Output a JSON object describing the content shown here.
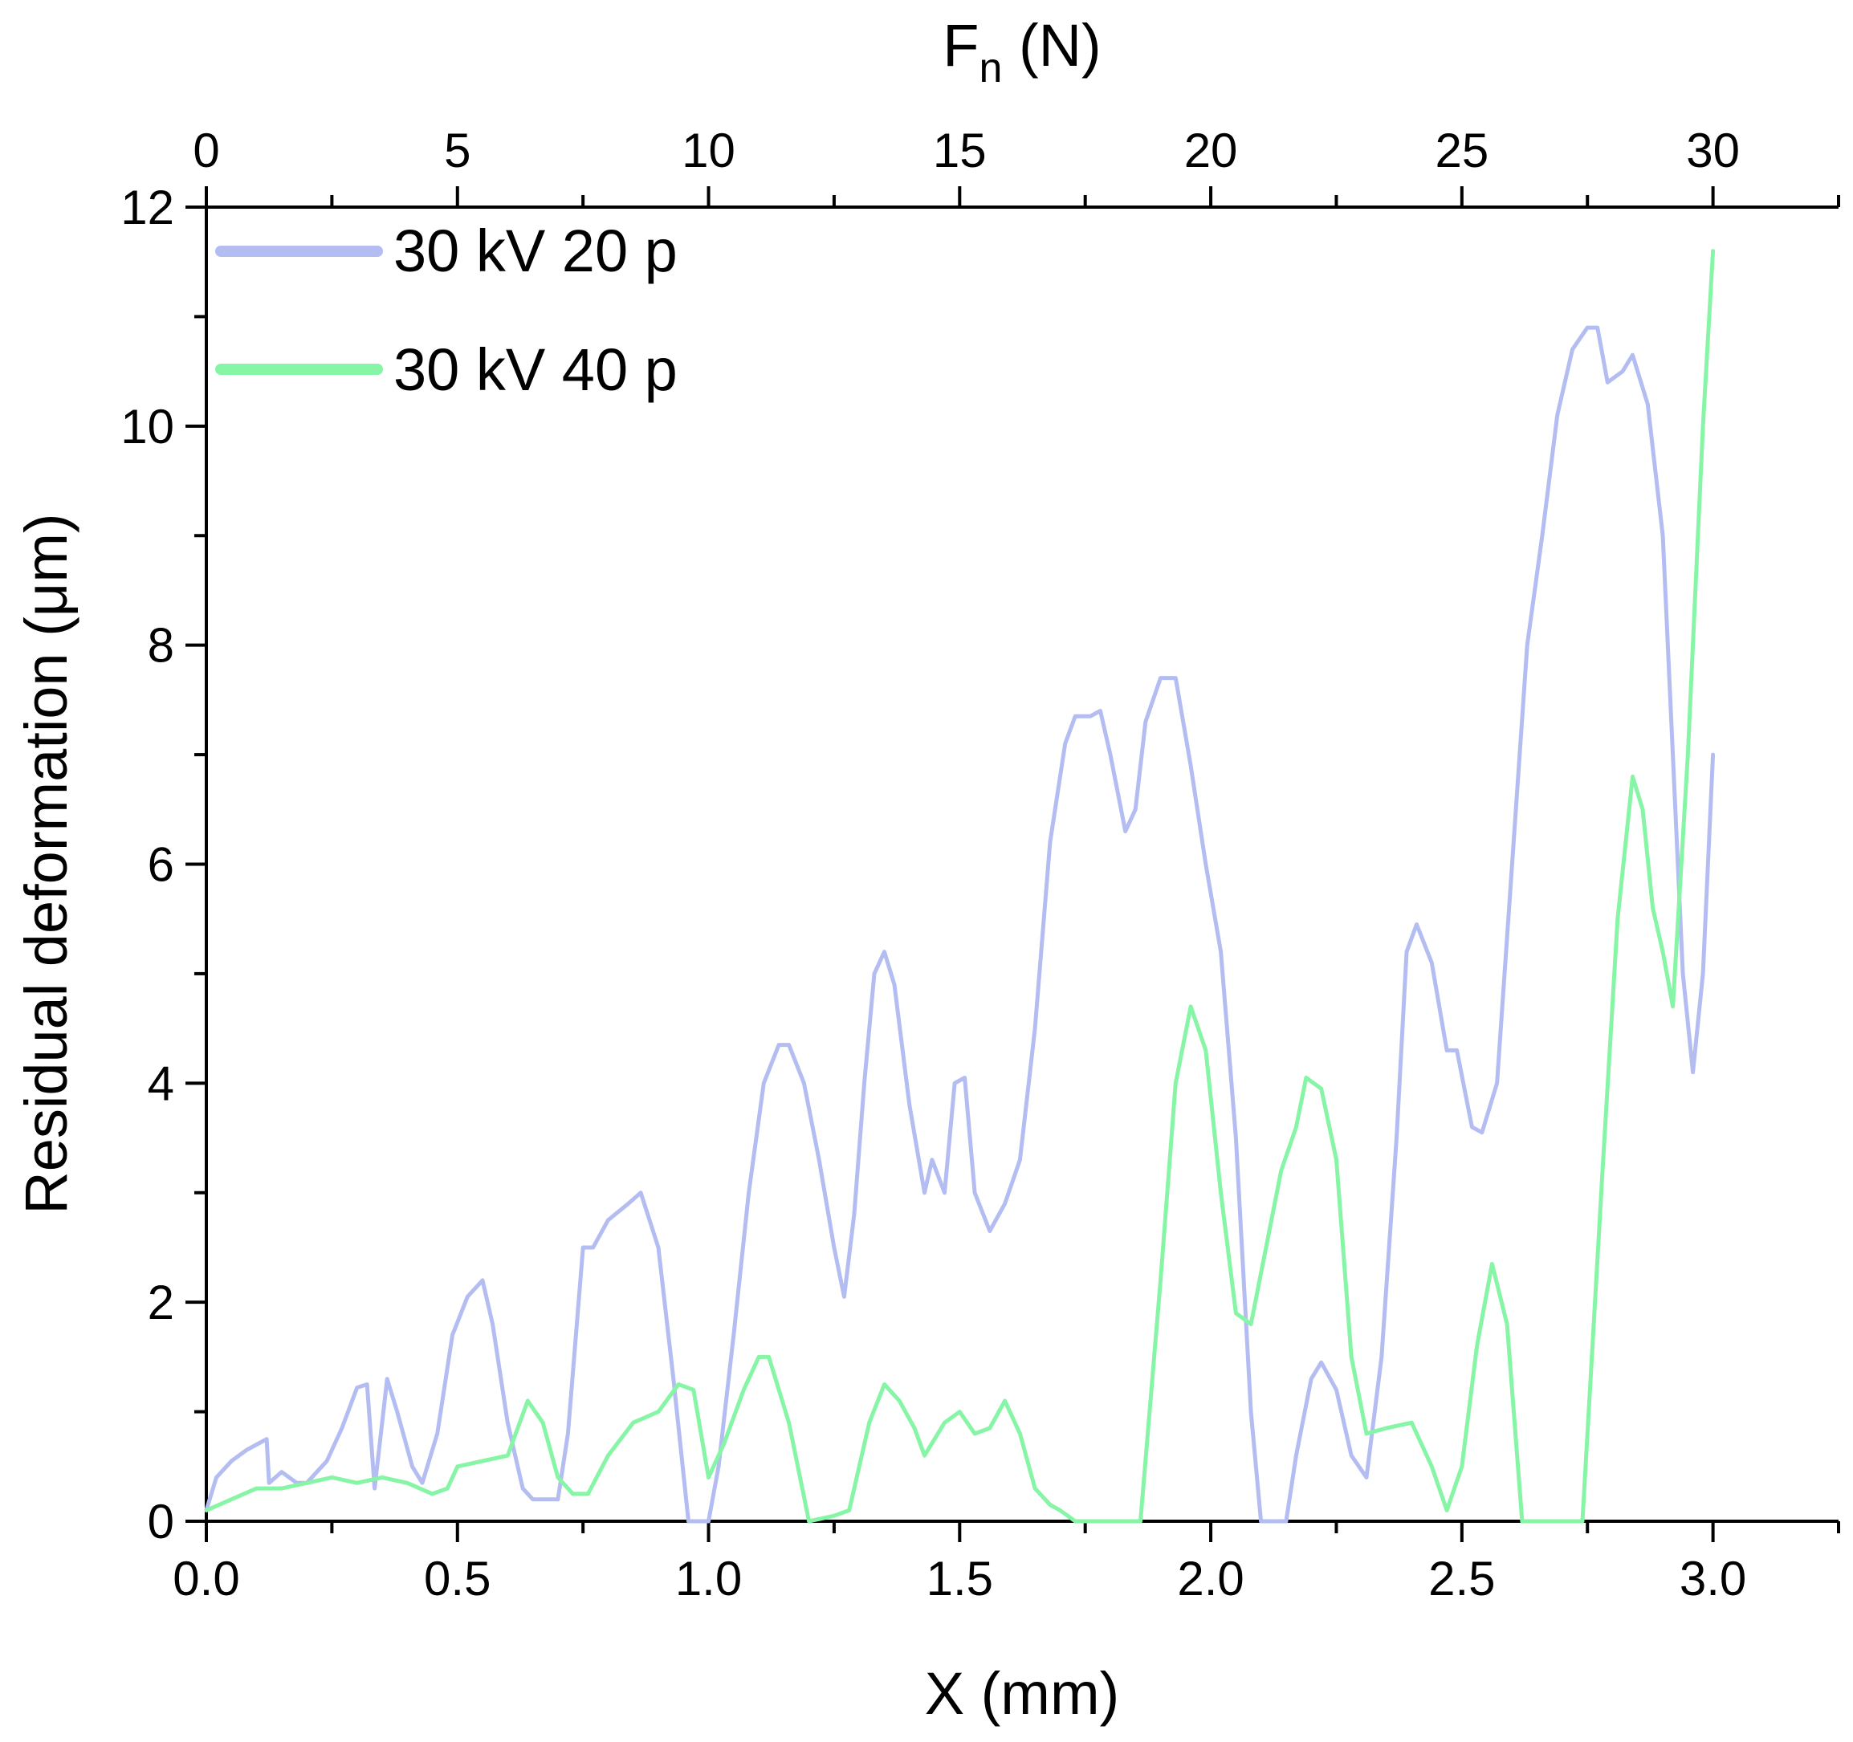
{
  "chart_data": {
    "type": "line",
    "xlabel": "X (mm)",
    "ylabel": "Residual deformation (μm)",
    "top_xlabel_main": "F",
    "top_xlabel_sub": "n",
    "top_xlabel_unit": " (N)",
    "xlim": [
      0,
      3.25
    ],
    "ylim": [
      0,
      12
    ],
    "top_xlim": [
      0,
      32.5
    ],
    "x_ticks": [
      "0.0",
      "0.5",
      "1.0",
      "1.5",
      "2.0",
      "2.5",
      "3.0"
    ],
    "y_ticks": [
      "0",
      "2",
      "4",
      "6",
      "8",
      "10",
      "12"
    ],
    "top_ticks": [
      "0",
      "5",
      "10",
      "15",
      "20",
      "25",
      "30"
    ],
    "grid": false,
    "legend_position": "top-left",
    "series": [
      {
        "name": "30 kV 20 p",
        "color": "#b3bdf2",
        "points": [
          [
            0,
            0.1
          ],
          [
            0.02,
            0.4
          ],
          [
            0.05,
            0.55
          ],
          [
            0.08,
            0.65
          ],
          [
            0.1,
            0.7
          ],
          [
            0.12,
            0.75
          ],
          [
            0.125,
            0.35
          ],
          [
            0.15,
            0.45
          ],
          [
            0.18,
            0.35
          ],
          [
            0.2,
            0.35
          ],
          [
            0.24,
            0.55
          ],
          [
            0.27,
            0.85
          ],
          [
            0.3,
            1.22
          ],
          [
            0.32,
            1.25
          ],
          [
            0.335,
            0.3
          ],
          [
            0.36,
            1.3
          ],
          [
            0.38,
            1.0
          ],
          [
            0.41,
            0.5
          ],
          [
            0.43,
            0.35
          ],
          [
            0.46,
            0.8
          ],
          [
            0.49,
            1.7
          ],
          [
            0.52,
            2.05
          ],
          [
            0.55,
            2.2
          ],
          [
            0.57,
            1.8
          ],
          [
            0.6,
            0.9
          ],
          [
            0.63,
            0.3
          ],
          [
            0.65,
            0.2
          ],
          [
            0.7,
            0.2
          ],
          [
            0.72,
            0.8
          ],
          [
            0.75,
            2.5
          ],
          [
            0.77,
            2.5
          ],
          [
            0.8,
            2.75
          ],
          [
            0.84,
            2.9
          ],
          [
            0.865,
            3.0
          ],
          [
            0.9,
            2.5
          ],
          [
            0.93,
            1.3
          ],
          [
            0.96,
            0.0
          ],
          [
            1.0,
            0.0
          ],
          [
            1.02,
            0.5
          ],
          [
            1.05,
            1.7
          ],
          [
            1.08,
            3.0
          ],
          [
            1.11,
            4.0
          ],
          [
            1.14,
            4.35
          ],
          [
            1.16,
            4.35
          ],
          [
            1.19,
            4.0
          ],
          [
            1.22,
            3.3
          ],
          [
            1.25,
            2.5
          ],
          [
            1.27,
            2.05
          ],
          [
            1.29,
            2.8
          ],
          [
            1.31,
            4.0
          ],
          [
            1.33,
            5.0
          ],
          [
            1.35,
            5.2
          ],
          [
            1.37,
            4.9
          ],
          [
            1.4,
            3.8
          ],
          [
            1.43,
            3.0
          ],
          [
            1.445,
            3.3
          ],
          [
            1.47,
            3.0
          ],
          [
            1.49,
            4.0
          ],
          [
            1.51,
            4.05
          ],
          [
            1.53,
            3.0
          ],
          [
            1.56,
            2.65
          ],
          [
            1.59,
            2.9
          ],
          [
            1.62,
            3.3
          ],
          [
            1.65,
            4.5
          ],
          [
            1.68,
            6.2
          ],
          [
            1.71,
            7.1
          ],
          [
            1.73,
            7.35
          ],
          [
            1.76,
            7.35
          ],
          [
            1.78,
            7.4
          ],
          [
            1.8,
            7.0
          ],
          [
            1.83,
            6.3
          ],
          [
            1.85,
            6.5
          ],
          [
            1.87,
            7.3
          ],
          [
            1.9,
            7.7
          ],
          [
            1.93,
            7.7
          ],
          [
            1.96,
            6.9
          ],
          [
            1.99,
            6.0
          ],
          [
            2.02,
            5.2
          ],
          [
            2.05,
            3.5
          ],
          [
            2.08,
            1.0
          ],
          [
            2.1,
            0.0
          ],
          [
            2.15,
            0.0
          ],
          [
            2.17,
            0.6
          ],
          [
            2.2,
            1.3
          ],
          [
            2.22,
            1.45
          ],
          [
            2.25,
            1.2
          ],
          [
            2.28,
            0.6
          ],
          [
            2.31,
            0.4
          ],
          [
            2.34,
            1.5
          ],
          [
            2.37,
            3.5
          ],
          [
            2.39,
            5.2
          ],
          [
            2.41,
            5.45
          ],
          [
            2.44,
            5.1
          ],
          [
            2.47,
            4.3
          ],
          [
            2.49,
            4.3
          ],
          [
            2.52,
            3.6
          ],
          [
            2.54,
            3.55
          ],
          [
            2.57,
            4.0
          ],
          [
            2.6,
            6.0
          ],
          [
            2.63,
            8.0
          ],
          [
            2.66,
            9.0
          ],
          [
            2.69,
            10.1
          ],
          [
            2.72,
            10.7
          ],
          [
            2.75,
            10.9
          ],
          [
            2.77,
            10.9
          ],
          [
            2.79,
            10.4
          ],
          [
            2.82,
            10.5
          ],
          [
            2.84,
            10.65
          ],
          [
            2.87,
            10.2
          ],
          [
            2.9,
            9.0
          ],
          [
            2.92,
            7.0
          ],
          [
            2.94,
            5.0
          ],
          [
            2.96,
            4.1
          ],
          [
            2.98,
            5.0
          ],
          [
            3.0,
            7.0
          ]
        ]
      },
      {
        "name": "30 kV 40 p",
        "color": "#87f5a6",
        "points": [
          [
            0,
            0.1
          ],
          [
            0.05,
            0.2
          ],
          [
            0.1,
            0.3
          ],
          [
            0.15,
            0.3
          ],
          [
            0.2,
            0.35
          ],
          [
            0.25,
            0.4
          ],
          [
            0.3,
            0.35
          ],
          [
            0.35,
            0.4
          ],
          [
            0.4,
            0.35
          ],
          [
            0.45,
            0.25
          ],
          [
            0.48,
            0.3
          ],
          [
            0.5,
            0.5
          ],
          [
            0.55,
            0.55
          ],
          [
            0.6,
            0.6
          ],
          [
            0.64,
            1.1
          ],
          [
            0.67,
            0.9
          ],
          [
            0.7,
            0.4
          ],
          [
            0.73,
            0.25
          ],
          [
            0.76,
            0.25
          ],
          [
            0.8,
            0.6
          ],
          [
            0.85,
            0.9
          ],
          [
            0.9,
            1.0
          ],
          [
            0.94,
            1.25
          ],
          [
            0.97,
            1.2
          ],
          [
            1.0,
            0.4
          ],
          [
            1.03,
            0.7
          ],
          [
            1.07,
            1.2
          ],
          [
            1.1,
            1.5
          ],
          [
            1.12,
            1.5
          ],
          [
            1.16,
            0.9
          ],
          [
            1.2,
            0.0
          ],
          [
            1.25,
            0.05
          ],
          [
            1.28,
            0.1
          ],
          [
            1.32,
            0.9
          ],
          [
            1.35,
            1.25
          ],
          [
            1.38,
            1.1
          ],
          [
            1.41,
            0.85
          ],
          [
            1.43,
            0.6
          ],
          [
            1.47,
            0.9
          ],
          [
            1.5,
            1.0
          ],
          [
            1.53,
            0.8
          ],
          [
            1.56,
            0.85
          ],
          [
            1.59,
            1.1
          ],
          [
            1.62,
            0.8
          ],
          [
            1.65,
            0.3
          ],
          [
            1.68,
            0.15
          ],
          [
            1.7,
            0.1
          ],
          [
            1.73,
            0.0
          ],
          [
            1.86,
            0.0
          ],
          [
            1.9,
            2.2
          ],
          [
            1.93,
            4.0
          ],
          [
            1.96,
            4.7
          ],
          [
            1.99,
            4.3
          ],
          [
            2.02,
            3.0
          ],
          [
            2.05,
            1.9
          ],
          [
            2.08,
            1.8
          ],
          [
            2.11,
            2.5
          ],
          [
            2.14,
            3.2
          ],
          [
            2.17,
            3.6
          ],
          [
            2.19,
            4.05
          ],
          [
            2.22,
            3.95
          ],
          [
            2.25,
            3.3
          ],
          [
            2.28,
            1.5
          ],
          [
            2.31,
            0.8
          ],
          [
            2.35,
            0.85
          ],
          [
            2.4,
            0.9
          ],
          [
            2.44,
            0.5
          ],
          [
            2.47,
            0.1
          ],
          [
            2.5,
            0.5
          ],
          [
            2.53,
            1.6
          ],
          [
            2.56,
            2.35
          ],
          [
            2.59,
            1.8
          ],
          [
            2.62,
            0.0
          ],
          [
            2.74,
            0.0
          ],
          [
            2.78,
            3.2
          ],
          [
            2.81,
            5.5
          ],
          [
            2.84,
            6.8
          ],
          [
            2.86,
            6.5
          ],
          [
            2.88,
            5.6
          ],
          [
            2.9,
            5.2
          ],
          [
            2.92,
            4.7
          ],
          [
            2.95,
            7.0
          ],
          [
            2.98,
            10.0
          ],
          [
            3.0,
            11.6
          ]
        ]
      }
    ]
  }
}
